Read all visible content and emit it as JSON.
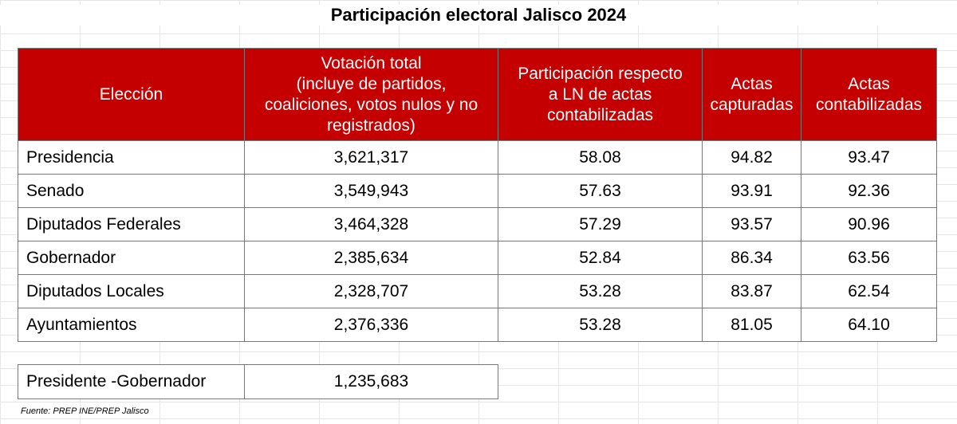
{
  "title": "Participación electoral Jalisco 2024",
  "table": {
    "headers": [
      {
        "lines": [
          "Elección"
        ]
      },
      {
        "lines": [
          "Votación total",
          "(incluye de partidos,",
          "coaliciones, votos nulos y no",
          "registrados)"
        ]
      },
      {
        "lines": [
          "Participación respecto",
          "a LN de actas",
          "contabilizadas"
        ]
      },
      {
        "lines": [
          "Actas",
          "capturadas"
        ]
      },
      {
        "lines": [
          "Actas",
          "contabilizadas"
        ]
      }
    ],
    "rows": [
      {
        "eleccion": "Presidencia",
        "votacion": "3,621,317",
        "participacion": "58.08",
        "capturadas": "94.82",
        "contabilizadas": "93.47"
      },
      {
        "eleccion": "Senado",
        "votacion": "3,549,943",
        "participacion": "57.63",
        "capturadas": "93.91",
        "contabilizadas": "92.36"
      },
      {
        "eleccion": "Diputados Federales",
        "votacion": "3,464,328",
        "participacion": "57.29",
        "capturadas": "93.57",
        "contabilizadas": "90.96"
      },
      {
        "eleccion": "Gobernador",
        "votacion": "2,385,634",
        "participacion": "52.84",
        "capturadas": "86.34",
        "contabilizadas": "63.56"
      },
      {
        "eleccion": "Diputados Locales",
        "votacion": "2,328,707",
        "participacion": "53.28",
        "capturadas": "83.87",
        "contabilizadas": "62.54"
      },
      {
        "eleccion": "Ayuntamientos",
        "votacion": "2,376,336",
        "participacion": "53.28",
        "capturadas": "81.05",
        "contabilizadas": "64.10"
      }
    ]
  },
  "extra": {
    "label": "Presidente -Gobernador",
    "value": "1,235,683"
  },
  "source": "Fuente: PREP INE/PREP Jalisco",
  "colors": {
    "header_bg": "#c40000",
    "header_text": "#ffffff"
  }
}
